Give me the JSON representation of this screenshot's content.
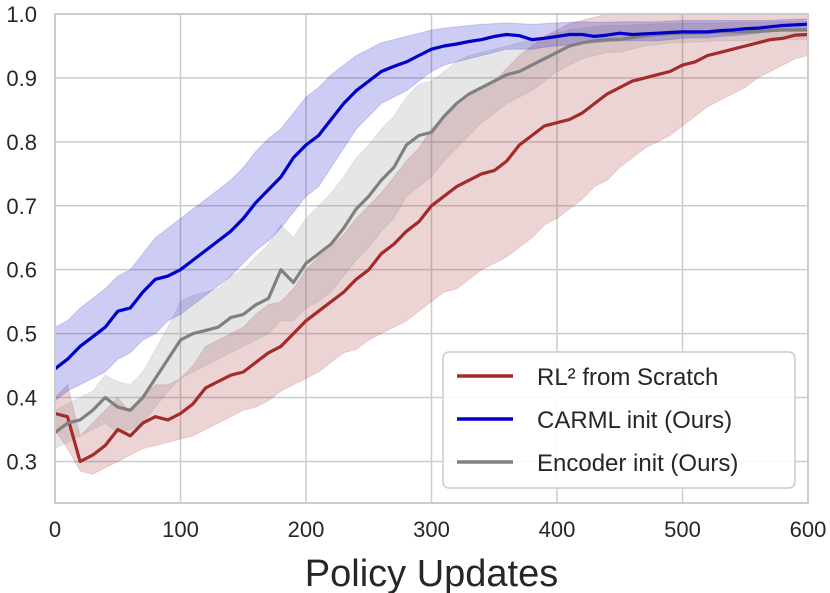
{
  "chart_data": {
    "type": "line",
    "title": "",
    "xlabel": "Policy Updates",
    "ylabel": "",
    "xlim": [
      0,
      600
    ],
    "ylim": [
      0.235,
      1.0
    ],
    "grid": true,
    "legend_position": "bottom-right",
    "x_ticks": [
      "0",
      "100",
      "200",
      "300",
      "400",
      "500",
      "600"
    ],
    "y_ticks": [
      "0.3",
      "0.4",
      "0.5",
      "0.6",
      "0.7",
      "0.8",
      "0.9",
      "1.0"
    ],
    "x": [
      0,
      10,
      20,
      30,
      40,
      50,
      60,
      70,
      80,
      90,
      100,
      110,
      120,
      130,
      140,
      150,
      160,
      170,
      180,
      190,
      200,
      210,
      220,
      230,
      240,
      250,
      260,
      270,
      280,
      290,
      300,
      310,
      320,
      330,
      340,
      350,
      360,
      370,
      380,
      390,
      400,
      410,
      420,
      430,
      440,
      450,
      460,
      470,
      480,
      490,
      500,
      510,
      520,
      530,
      540,
      550,
      560,
      570,
      580,
      590,
      600
    ],
    "series": [
      {
        "name": "RL² from Scratch",
        "color": "#a52a2a",
        "values": [
          0.375,
          0.37,
          0.3,
          0.31,
          0.325,
          0.35,
          0.34,
          0.36,
          0.37,
          0.365,
          0.375,
          0.39,
          0.415,
          0.425,
          0.435,
          0.44,
          0.455,
          0.47,
          0.48,
          0.5,
          0.52,
          0.535,
          0.55,
          0.565,
          0.585,
          0.6,
          0.625,
          0.64,
          0.66,
          0.675,
          0.7,
          0.715,
          0.73,
          0.74,
          0.75,
          0.755,
          0.77,
          0.795,
          0.81,
          0.825,
          0.83,
          0.835,
          0.845,
          0.86,
          0.875,
          0.885,
          0.895,
          0.9,
          0.905,
          0.91,
          0.92,
          0.925,
          0.935,
          0.94,
          0.945,
          0.95,
          0.955,
          0.96,
          0.962,
          0.967,
          0.968
        ],
        "lower": [
          0.35,
          0.32,
          0.285,
          0.28,
          0.29,
          0.3,
          0.31,
          0.32,
          0.325,
          0.33,
          0.335,
          0.34,
          0.35,
          0.36,
          0.37,
          0.38,
          0.385,
          0.395,
          0.41,
          0.42,
          0.43,
          0.44,
          0.455,
          0.47,
          0.475,
          0.49,
          0.5,
          0.51,
          0.52,
          0.535,
          0.55,
          0.565,
          0.57,
          0.585,
          0.6,
          0.61,
          0.62,
          0.635,
          0.65,
          0.67,
          0.68,
          0.695,
          0.71,
          0.73,
          0.74,
          0.76,
          0.775,
          0.79,
          0.8,
          0.81,
          0.825,
          0.84,
          0.855,
          0.865,
          0.875,
          0.885,
          0.9,
          0.91,
          0.92,
          0.93,
          0.935
        ],
        "upper": [
          0.4,
          0.42,
          0.34,
          0.36,
          0.38,
          0.4,
          0.375,
          0.4,
          0.42,
          0.42,
          0.43,
          0.45,
          0.48,
          0.49,
          0.5,
          0.51,
          0.53,
          0.545,
          0.55,
          0.57,
          0.6,
          0.62,
          0.635,
          0.655,
          0.68,
          0.7,
          0.72,
          0.745,
          0.77,
          0.79,
          0.82,
          0.84,
          0.855,
          0.87,
          0.885,
          0.895,
          0.915,
          0.935,
          0.95,
          0.965,
          0.975,
          0.985,
          0.99,
          0.995,
          1.0,
          1.0,
          1.0,
          1.0,
          1.0,
          1.0,
          1.0,
          1.0,
          1.0,
          1.0,
          1.0,
          1.0,
          1.0,
          1.0,
          1.0,
          1.0,
          1.0
        ]
      },
      {
        "name": "CARML init (Ours)",
        "color": "#0000c8",
        "values": [
          0.445,
          0.46,
          0.48,
          0.495,
          0.51,
          0.535,
          0.54,
          0.565,
          0.585,
          0.59,
          0.6,
          0.615,
          0.63,
          0.645,
          0.66,
          0.68,
          0.705,
          0.725,
          0.745,
          0.775,
          0.795,
          0.81,
          0.835,
          0.86,
          0.88,
          0.895,
          0.91,
          0.918,
          0.925,
          0.935,
          0.945,
          0.95,
          0.953,
          0.957,
          0.96,
          0.965,
          0.968,
          0.966,
          0.96,
          0.962,
          0.965,
          0.968,
          0.968,
          0.965,
          0.967,
          0.97,
          0.968,
          0.969,
          0.97,
          0.971,
          0.972,
          0.972,
          0.972,
          0.974,
          0.975,
          0.977,
          0.978,
          0.98,
          0.982,
          0.983,
          0.984
        ],
        "lower": [
          0.395,
          0.41,
          0.42,
          0.43,
          0.44,
          0.46,
          0.47,
          0.49,
          0.5,
          0.52,
          0.53,
          0.545,
          0.56,
          0.575,
          0.59,
          0.61,
          0.63,
          0.645,
          0.665,
          0.69,
          0.715,
          0.73,
          0.76,
          0.79,
          0.82,
          0.84,
          0.86,
          0.87,
          0.88,
          0.895,
          0.91,
          0.92,
          0.925,
          0.93,
          0.935,
          0.94,
          0.945,
          0.945,
          0.945,
          0.948,
          0.95,
          0.952,
          0.955,
          0.955,
          0.957,
          0.958,
          0.958,
          0.958,
          0.958,
          0.96,
          0.962,
          0.963,
          0.963,
          0.965,
          0.966,
          0.968,
          0.97,
          0.972,
          0.975,
          0.977,
          0.978
        ],
        "upper": [
          0.51,
          0.52,
          0.54,
          0.555,
          0.57,
          0.59,
          0.6,
          0.625,
          0.65,
          0.665,
          0.68,
          0.695,
          0.71,
          0.725,
          0.74,
          0.76,
          0.785,
          0.805,
          0.82,
          0.845,
          0.87,
          0.885,
          0.905,
          0.92,
          0.935,
          0.945,
          0.955,
          0.96,
          0.965,
          0.97,
          0.975,
          0.978,
          0.98,
          0.982,
          0.984,
          0.985,
          0.986,
          0.985,
          0.984,
          0.985,
          0.986,
          0.987,
          0.988,
          0.987,
          0.987,
          0.988,
          0.988,
          0.988,
          0.988,
          0.989,
          0.99,
          0.99,
          0.99,
          0.99,
          0.99,
          0.99,
          0.99,
          0.99,
          0.991,
          0.992,
          0.992
        ]
      },
      {
        "name": "Encoder init (Ours)",
        "color": "#808080",
        "values": [
          0.345,
          0.36,
          0.365,
          0.38,
          0.4,
          0.385,
          0.38,
          0.4,
          0.43,
          0.46,
          0.49,
          0.5,
          0.505,
          0.51,
          0.525,
          0.53,
          0.545,
          0.555,
          0.6,
          0.58,
          0.61,
          0.625,
          0.64,
          0.665,
          0.695,
          0.715,
          0.74,
          0.76,
          0.795,
          0.81,
          0.815,
          0.84,
          0.86,
          0.875,
          0.885,
          0.895,
          0.905,
          0.91,
          0.92,
          0.93,
          0.94,
          0.95,
          0.955,
          0.958,
          0.96,
          0.96,
          0.963,
          0.966,
          0.968,
          0.969,
          0.97,
          0.97,
          0.971,
          0.972,
          0.972,
          0.972,
          0.973,
          0.974,
          0.975,
          0.975,
          0.975
        ],
        "lower": [
          0.32,
          0.33,
          0.34,
          0.35,
          0.36,
          0.345,
          0.35,
          0.36,
          0.385,
          0.41,
          0.43,
          0.44,
          0.45,
          0.46,
          0.47,
          0.48,
          0.49,
          0.5,
          0.52,
          0.52,
          0.54,
          0.55,
          0.565,
          0.59,
          0.615,
          0.635,
          0.66,
          0.68,
          0.715,
          0.73,
          0.745,
          0.77,
          0.79,
          0.81,
          0.83,
          0.845,
          0.86,
          0.87,
          0.88,
          0.895,
          0.91,
          0.92,
          0.93,
          0.935,
          0.94,
          0.94,
          0.945,
          0.95,
          0.952,
          0.955,
          0.955,
          0.956,
          0.957,
          0.958,
          0.958,
          0.958,
          0.959,
          0.96,
          0.96,
          0.96,
          0.96
        ],
        "upper": [
          0.38,
          0.39,
          0.4,
          0.41,
          0.435,
          0.425,
          0.42,
          0.44,
          0.475,
          0.51,
          0.55,
          0.56,
          0.565,
          0.57,
          0.59,
          0.6,
          0.62,
          0.64,
          0.67,
          0.65,
          0.68,
          0.7,
          0.72,
          0.745,
          0.775,
          0.795,
          0.82,
          0.84,
          0.87,
          0.89,
          0.895,
          0.91,
          0.925,
          0.935,
          0.94,
          0.945,
          0.95,
          0.955,
          0.96,
          0.965,
          0.97,
          0.975,
          0.978,
          0.98,
          0.982,
          0.982,
          0.983,
          0.984,
          0.985,
          0.985,
          0.986,
          0.986,
          0.986,
          0.986,
          0.987,
          0.987,
          0.987,
          0.987,
          0.988,
          0.988,
          0.988
        ]
      }
    ]
  }
}
